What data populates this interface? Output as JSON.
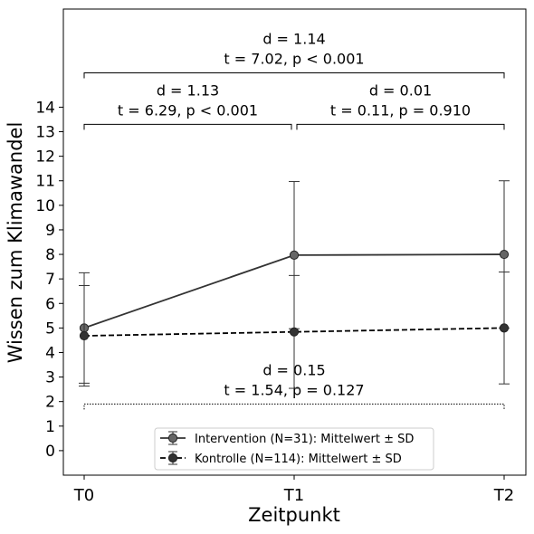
{
  "chart_data": {
    "type": "line",
    "xlabel": "Zeitpunkt",
    "ylabel": "Wissen zum Klimawandel",
    "categories": [
      "T0",
      "T1",
      "T2"
    ],
    "yticks": [
      0,
      1,
      2,
      3,
      4,
      5,
      6,
      7,
      8,
      9,
      10,
      11,
      12,
      13,
      14
    ],
    "ylim": [
      -1,
      18
    ],
    "grid": false,
    "legend_position": "lower-center",
    "series": [
      {
        "key": "intervention",
        "name": "Intervention (N=31): Mittelwert ± SD",
        "values": [
          5.0,
          7.97,
          8.0
        ],
        "sd": [
          2.25,
          3.0,
          3.0
        ],
        "color": "#666666",
        "line_color": "#333333",
        "dashed": false
      },
      {
        "key": "kontrolle",
        "name": "Kontrolle (N=114): Mittelwert ± SD",
        "values": [
          4.68,
          4.84,
          5.0
        ],
        "sd": [
          2.05,
          2.3,
          2.28
        ],
        "color": "#333333",
        "line_color": "#000000",
        "dashed": true
      }
    ],
    "annotations": [
      {
        "key": "t0_t2",
        "from": "T0",
        "to": "T2",
        "y": 15.4,
        "line1": "d = 1.14",
        "line2": "t = 7.02, p < 0.001",
        "dotted": false
      },
      {
        "key": "t0_t1",
        "from": "T0",
        "to": "T1",
        "y": 13.3,
        "line1": "d = 1.13",
        "line2": "t = 6.29, p < 0.001",
        "dotted": false
      },
      {
        "key": "t1_t2",
        "from": "T1",
        "to": "T2",
        "y": 13.3,
        "line1": "d = 0.01",
        "line2": "t = 0.11, p = 0.910",
        "dotted": false
      },
      {
        "key": "ctrl",
        "from": "T0",
        "to": "T2",
        "y": 1.9,
        "line1": "d = 0.15",
        "line2": "t = 1.54, p = 0.127",
        "dotted": true
      }
    ]
  }
}
